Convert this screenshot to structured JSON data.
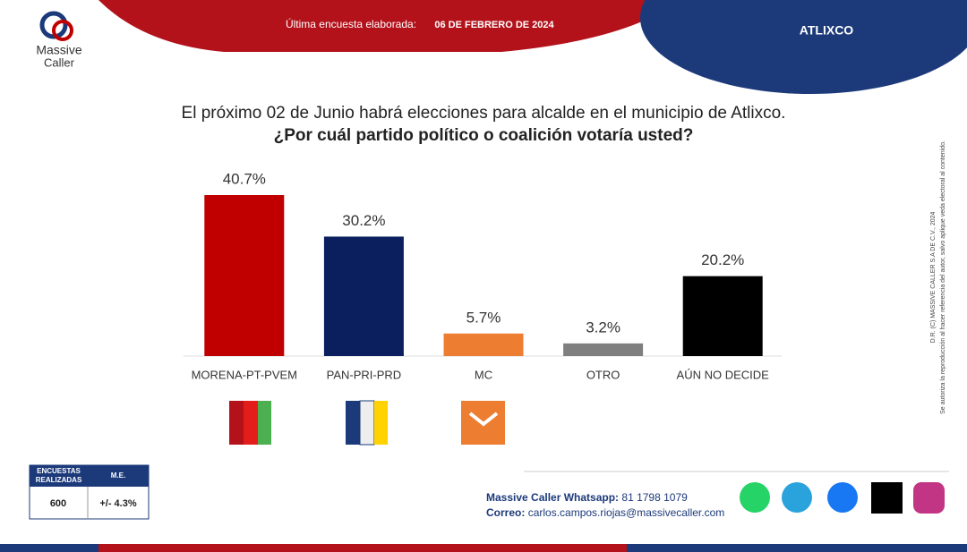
{
  "header": {
    "brand_top": "Massive",
    "brand_bottom": "Caller",
    "survey_label": "Última encuesta elaborada:",
    "survey_date": "06 DE FEBRERO DE 2024",
    "location": "ATLIXCO"
  },
  "chart_data": {
    "type": "bar",
    "title": "El próximo 02 de Junio habrá elecciones para alcalde en el municipio de  Atlixco.",
    "subtitle": "¿Por cuál partido político o coalición votaría usted?",
    "categories": [
      "MORENA-PT-PVEM",
      "PAN-PRI-PRD",
      "MC",
      "OTRO",
      "AÚN NO DECIDE"
    ],
    "values": [
      40.7,
      30.2,
      5.7,
      3.2,
      20.2
    ],
    "value_labels": [
      "40.7%",
      "30.2%",
      "5.7%",
      "3.2%",
      "20.2%"
    ],
    "colors": [
      "#c00000",
      "#0b1f5e",
      "#ed7d31",
      "#7f7f7f",
      "#000000"
    ],
    "ylim": [
      0,
      45
    ]
  },
  "sample": {
    "headers": [
      "ENCUESTAS REALIZADAS",
      "M.E."
    ],
    "interviews": 600,
    "margin": "+/- 4.3%"
  },
  "contact": {
    "whatsapp_label": "Massive Caller Whatsapp:",
    "whatsapp": "81 1798 1079",
    "email_label": "Correo:",
    "email": "carlos.campos.riojas@massivecaller.com"
  },
  "legal": {
    "copyright": "D.R. (C) MASSIVE CALLER S.A DE C.V., 2024",
    "disclaimer": "Se autoriza la reproducción al hacer referencia del autor, salvo aplique veda electoral al contenido."
  }
}
